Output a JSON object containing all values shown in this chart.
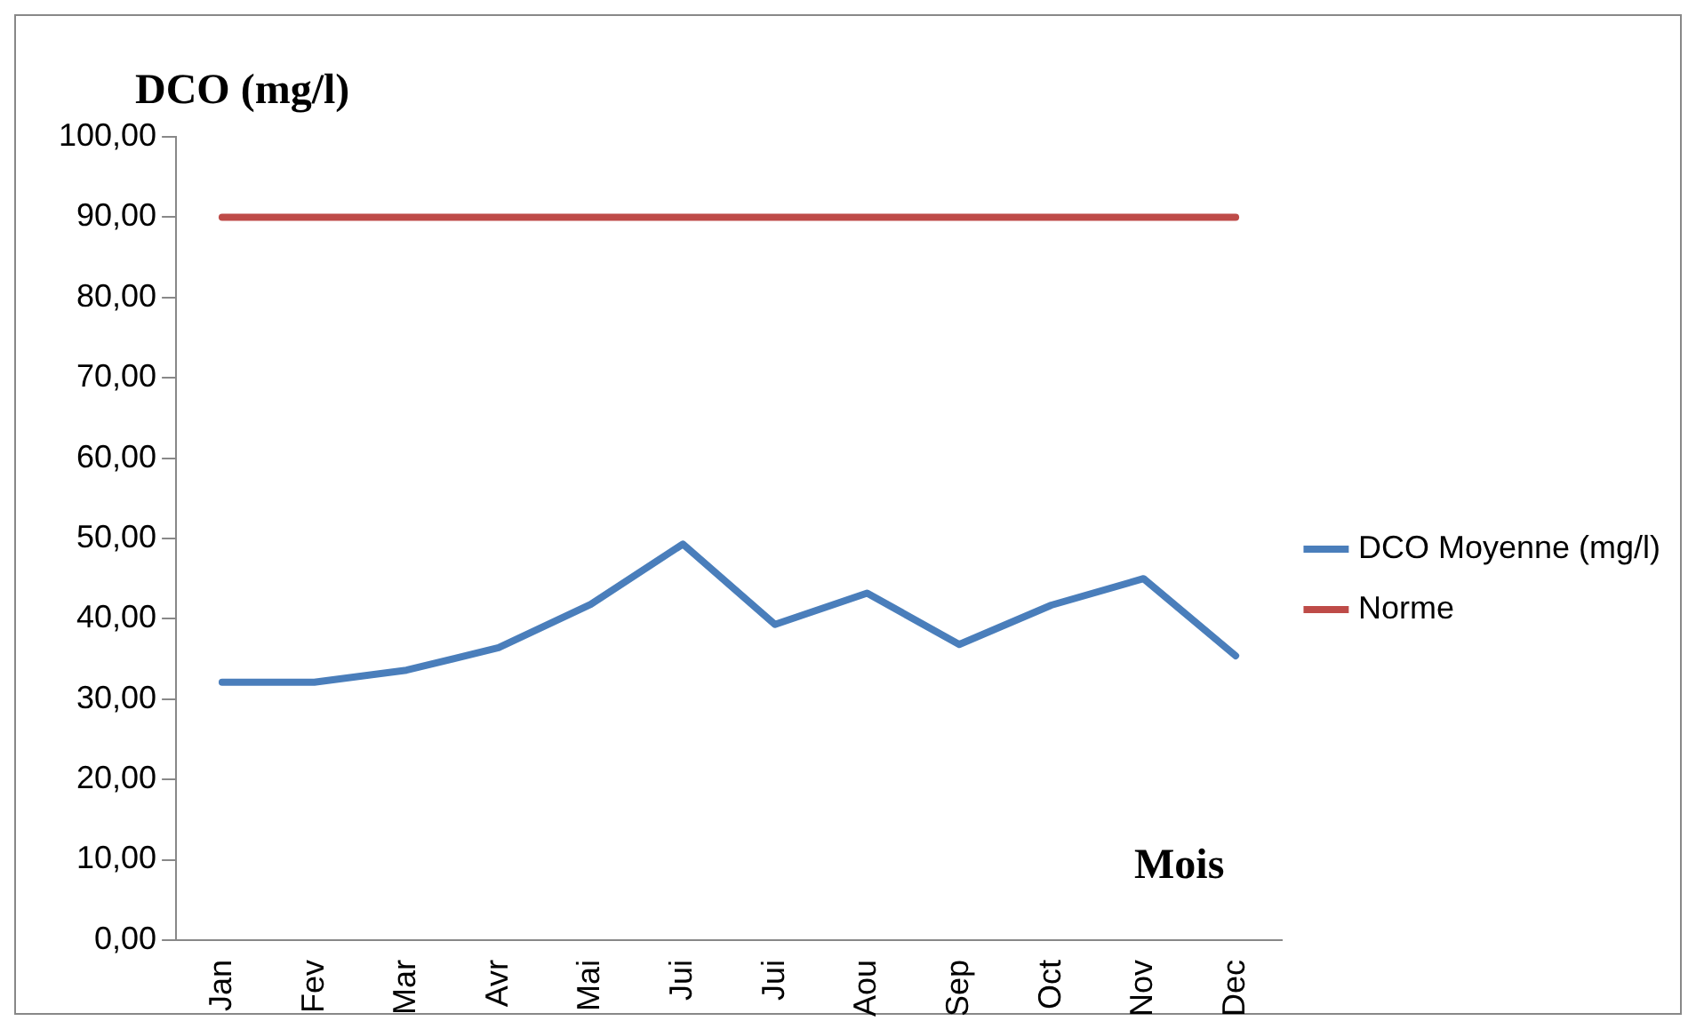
{
  "chart_data": {
    "type": "line",
    "ylabel": "DCO (mg/l)",
    "xlabel": "Mois",
    "categories": [
      "Jan",
      "Fev",
      "Mar",
      "Avr",
      "Mai",
      "Jui",
      "Jui",
      "Aou",
      "Sep",
      "Oct",
      "Nov",
      "Dec"
    ],
    "series": [
      {
        "name": "DCO Moyenne (mg/l)",
        "color": "#4a7ebb",
        "values": [
          32.1,
          32.1,
          33.6,
          36.4,
          41.8,
          49.3,
          39.3,
          43.2,
          36.8,
          41.7,
          45.0,
          35.4
        ]
      },
      {
        "name": "Norme",
        "color": "#be4b48",
        "values": [
          90,
          90,
          90,
          90,
          90,
          90,
          90,
          90,
          90,
          90,
          90,
          90
        ]
      }
    ],
    "ylim": [
      0,
      100
    ],
    "yticks": [
      {
        "value": 0,
        "label": "0,00"
      },
      {
        "value": 10,
        "label": "10,00"
      },
      {
        "value": 20,
        "label": "20,00"
      },
      {
        "value": 30,
        "label": "30,00"
      },
      {
        "value": 40,
        "label": "40,00"
      },
      {
        "value": 50,
        "label": "50,00"
      },
      {
        "value": 60,
        "label": "60,00"
      },
      {
        "value": 70,
        "label": "70,00"
      },
      {
        "value": 80,
        "label": "80,00"
      },
      {
        "value": 90,
        "label": "90,00"
      },
      {
        "value": 100,
        "label": "100,00"
      }
    ],
    "grid": false,
    "legend": "right",
    "marker": "none",
    "line_style": "solid"
  }
}
